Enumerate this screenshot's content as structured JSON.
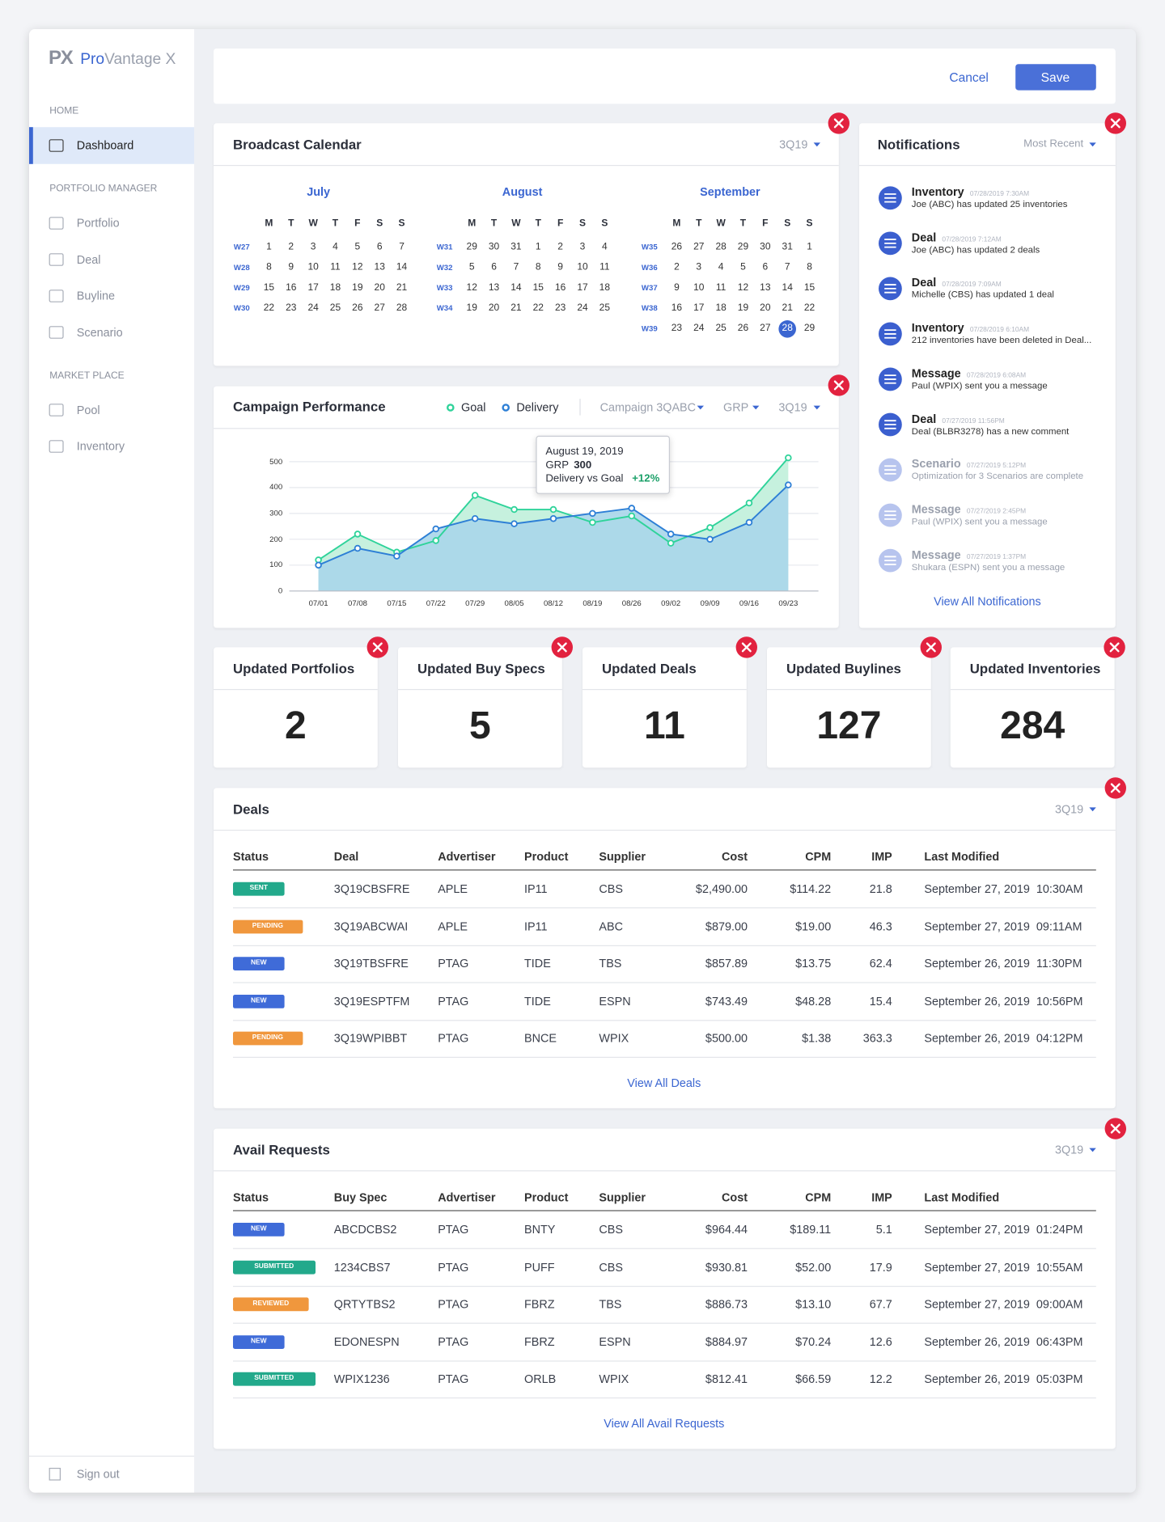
{
  "sidebar": {
    "logo": {
      "mark": "PX",
      "name_1": "Pro",
      "name_2": "Vantage X"
    },
    "sections": [
      {
        "label": "HOME",
        "items": [
          "Dashboard"
        ]
      },
      {
        "label": "PORTFOLIO MANAGER",
        "items": [
          "Portfolio",
          "Deal",
          "Buyline",
          "Scenario"
        ]
      },
      {
        "label": "MARKET PLACE",
        "items": [
          "Pool",
          "Inventory"
        ]
      }
    ],
    "active_section": 0,
    "active_item": 0,
    "sign_out": "Sign out"
  },
  "toolbar": {
    "cancel": "Cancel",
    "save": "Save"
  },
  "calendar": {
    "title": "Broadcast Calendar",
    "period": "3Q19",
    "weekdays": [
      "M",
      "T",
      "W",
      "T",
      "F",
      "S",
      "S"
    ],
    "months": [
      {
        "name": "July",
        "weeks": [
          {
            "label": "W27",
            "days": [
              1,
              2,
              3,
              4,
              5,
              6,
              7
            ]
          },
          {
            "label": "W28",
            "days": [
              8,
              9,
              10,
              11,
              12,
              13,
              14
            ]
          },
          {
            "label": "W29",
            "days": [
              15,
              16,
              17,
              18,
              19,
              20,
              21
            ]
          },
          {
            "label": "W30",
            "days": [
              22,
              23,
              24,
              25,
              26,
              27,
              28
            ]
          }
        ]
      },
      {
        "name": "August",
        "weeks": [
          {
            "label": "W31",
            "days": [
              29,
              30,
              31,
              1,
              2,
              3,
              4
            ]
          },
          {
            "label": "W32",
            "days": [
              5,
              6,
              7,
              8,
              9,
              10,
              11
            ]
          },
          {
            "label": "W33",
            "days": [
              12,
              13,
              14,
              15,
              16,
              17,
              18
            ]
          },
          {
            "label": "W34",
            "days": [
              19,
              20,
              21,
              22,
              23,
              24,
              25
            ]
          }
        ]
      },
      {
        "name": "September",
        "weeks": [
          {
            "label": "W35",
            "days": [
              26,
              27,
              28,
              29,
              30,
              31,
              1
            ]
          },
          {
            "label": "W36",
            "days": [
              2,
              3,
              4,
              5,
              6,
              7,
              8
            ]
          },
          {
            "label": "W37",
            "days": [
              9,
              10,
              11,
              12,
              13,
              14,
              15
            ]
          },
          {
            "label": "W38",
            "days": [
              16,
              17,
              18,
              19,
              20,
              21,
              22
            ]
          },
          {
            "label": "W39",
            "days": [
              23,
              24,
              25,
              26,
              27,
              28,
              29
            ]
          }
        ]
      }
    ],
    "selected": {
      "month": 2,
      "week": 4,
      "day": 5
    }
  },
  "campaign": {
    "title": "Campaign Performance",
    "filters": [
      "Campaign 3QABC",
      "GRP",
      "3Q19"
    ],
    "x": [
      "07/01",
      "07/08",
      "07/15",
      "07/22",
      "07/29",
      "08/05",
      "08/12",
      "08/19",
      "08/26",
      "09/02",
      "09/09",
      "09/16",
      "09/23"
    ],
    "series": [
      {
        "name": "Goal",
        "color": "#2fd39a",
        "area": "#c6f1de",
        "values": [
          120,
          220,
          150,
          195,
          370,
          315,
          315,
          265,
          290,
          185,
          245,
          340,
          515
        ]
      },
      {
        "name": "Delivery",
        "color": "#2d7fd6",
        "area": "#a9d6ea",
        "values": [
          100,
          165,
          135,
          240,
          280,
          260,
          280,
          300,
          320,
          220,
          200,
          265,
          410
        ]
      }
    ],
    "ylim": [
      0,
      550
    ],
    "yticks": [
      0,
      100,
      200,
      300,
      400,
      500
    ],
    "grid": true,
    "tooltip": {
      "date": "August 19, 2019",
      "metric": "GRP",
      "value": 300,
      "comparison_label": "Delivery vs Goal",
      "comparison": "+12%"
    }
  },
  "notifications": {
    "title": "Notifications",
    "sort": "Most Recent",
    "link": "View All Notifications",
    "items": [
      {
        "title": "Inventory",
        "time": "07/28/2019 7:30AM",
        "text": "Joe (ABC) has updated 25 inventories",
        "read": false
      },
      {
        "title": "Deal",
        "time": "07/28/2019 7:12AM",
        "text": "Joe (ABC) has updated 2 deals",
        "read": false
      },
      {
        "title": "Deal",
        "time": "07/28/2019 7:09AM",
        "text": "Michelle (CBS) has updated 1 deal",
        "read": false
      },
      {
        "title": "Inventory",
        "time": "07/28/2019 6:10AM",
        "text": "212 inventories have been deleted in Deal...",
        "read": false
      },
      {
        "title": "Message",
        "time": "07/28/2019 6:08AM",
        "text": "Paul (WPIX) sent you a message",
        "read": false
      },
      {
        "title": "Deal",
        "time": "07/27/2019 11:56PM",
        "text": "Deal (BLBR3278) has a new comment",
        "read": false
      },
      {
        "title": "Scenario",
        "time": "07/27/2019 5:12PM",
        "text": "Optimization for 3 Scenarios are complete",
        "read": true
      },
      {
        "title": "Message",
        "time": "07/27/2019 2:45PM",
        "text": "Paul (WPIX) sent you a message",
        "read": true
      },
      {
        "title": "Message",
        "time": "07/27/2019 1:37PM",
        "text": "Shukara (ESPN) sent you a message",
        "read": true
      }
    ]
  },
  "stats": [
    {
      "title": "Updated Portfolios",
      "value": 2
    },
    {
      "title": "Updated Buy Specs",
      "value": 5
    },
    {
      "title": "Updated Deals",
      "value": 11
    },
    {
      "title": "Updated Buylines",
      "value": 127
    },
    {
      "title": "Updated Inventories",
      "value": 284
    }
  ],
  "status_colors": {
    "SENT": "#22a98b",
    "PENDING": "#f0973d",
    "NEW": "#3f6bd8",
    "SUBMITTED": "#22a98b",
    "REVIEWED": "#f0973d"
  },
  "deals": {
    "title": "Deals",
    "period": "3Q19",
    "link": "View All Deals",
    "columns": [
      "Status",
      "Deal",
      "Advertiser",
      "Product",
      "Supplier",
      "Cost",
      "CPM",
      "IMP",
      "Last Modified"
    ],
    "rows": [
      [
        "SENT",
        "3Q19CBSFRE",
        "APLE",
        "IP11",
        "CBS",
        "$2,490.00",
        "$114.22",
        21.8,
        "September 27, 2019  10:30AM"
      ],
      [
        "PENDING",
        "3Q19ABCWAI",
        "APLE",
        "IP11",
        "ABC",
        "$879.00",
        "$19.00",
        46.3,
        "September 27, 2019  09:11AM"
      ],
      [
        "NEW",
        "3Q19TBSFRE",
        "PTAG",
        "TIDE",
        "TBS",
        "$857.89",
        "$13.75",
        62.4,
        "September 26, 2019  11:30PM"
      ],
      [
        "NEW",
        "3Q19ESPTFM",
        "PTAG",
        "TIDE",
        "ESPN",
        "$743.49",
        "$48.28",
        15.4,
        "September 26, 2019  10:56PM"
      ],
      [
        "PENDING",
        "3Q19WPIBBT",
        "PTAG",
        "BNCE",
        "WPIX",
        "$500.00",
        "$1.38",
        363.3,
        "September 26, 2019  04:12PM"
      ]
    ]
  },
  "avails": {
    "title": "Avail Requests",
    "period": "3Q19",
    "link": "View All Avail Requests",
    "columns": [
      "Status",
      "Buy Spec",
      "Advertiser",
      "Product",
      "Supplier",
      "Cost",
      "CPM",
      "IMP",
      "Last Modified"
    ],
    "rows": [
      [
        "NEW",
        "ABCDCBS2",
        "PTAG",
        "BNTY",
        "CBS",
        "$964.44",
        "$189.11",
        5.1,
        "September 27, 2019  01:24PM"
      ],
      [
        "SUBMITTED",
        "1234CBS7",
        "PTAG",
        "PUFF",
        "CBS",
        "$930.81",
        "$52.00",
        17.9,
        "September 27, 2019  10:55AM"
      ],
      [
        "REVIEWED",
        "QRTYTBS2",
        "PTAG",
        "FBRZ",
        "TBS",
        "$886.73",
        "$13.10",
        67.7,
        "September 27, 2019  09:00AM"
      ],
      [
        "NEW",
        "EDONESPN",
        "PTAG",
        "FBRZ",
        "ESPN",
        "$884.97",
        "$70.24",
        12.6,
        "September 26, 2019  06:43PM"
      ],
      [
        "SUBMITTED",
        "WPIX1236",
        "PTAG",
        "ORLB",
        "WPIX",
        "$812.41",
        "$66.59",
        12.2,
        "September 26, 2019  05:03PM"
      ]
    ]
  }
}
